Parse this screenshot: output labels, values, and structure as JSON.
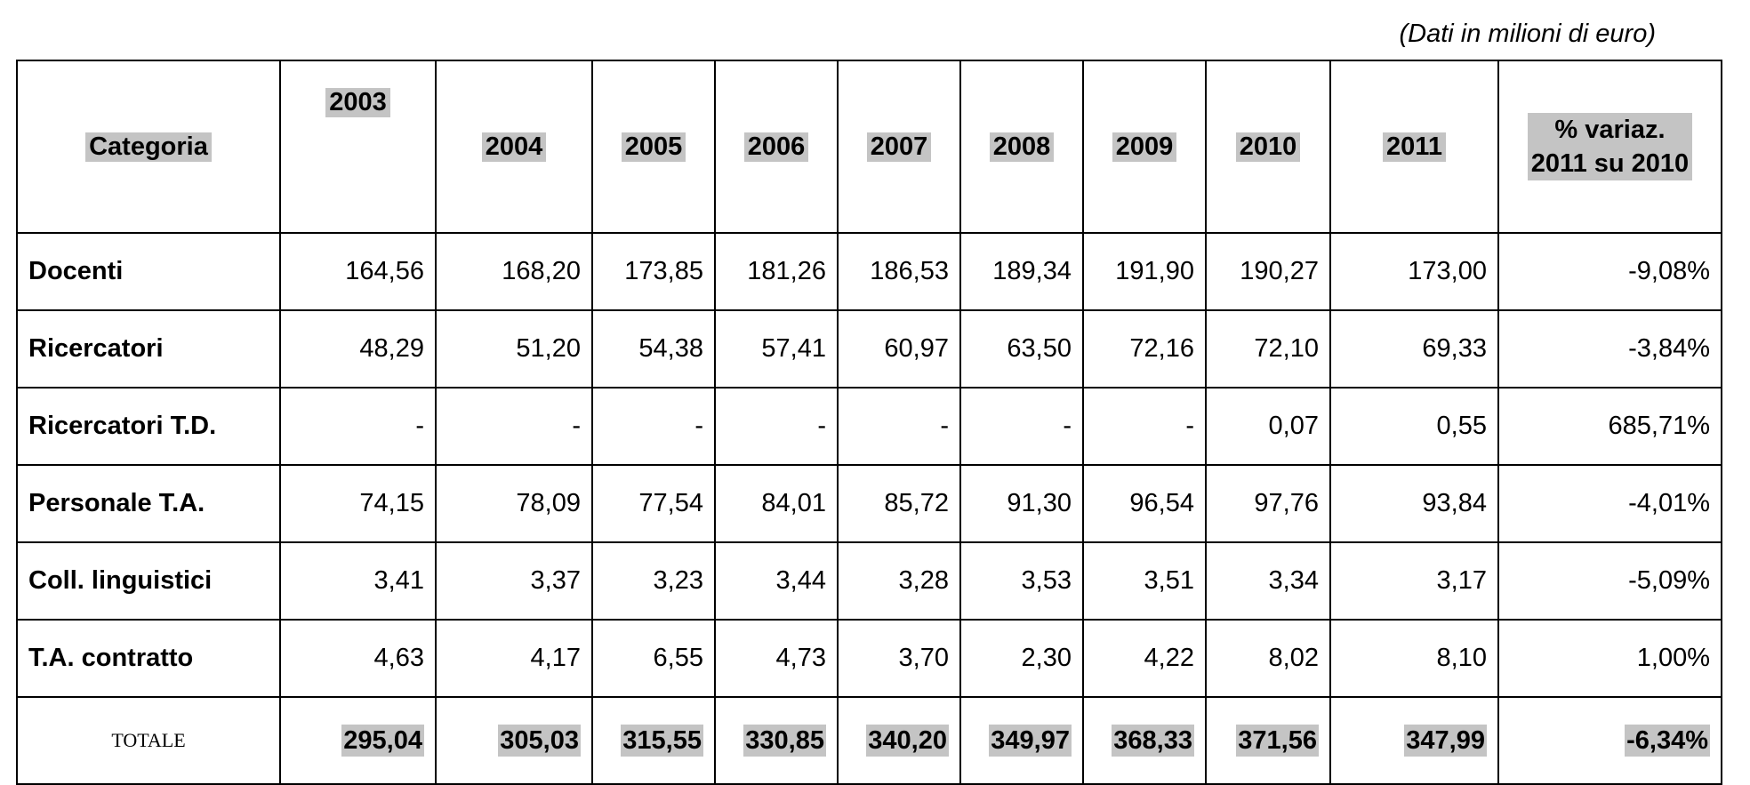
{
  "unit_note": "(Dati in milioni di euro)",
  "header": {
    "categoria": "Categoria",
    "years": [
      "2003",
      "2004",
      "2005",
      "2006",
      "2007",
      "2008",
      "2009",
      "2010",
      "2011"
    ],
    "pct_line1": "% variaz.",
    "pct_line2": "2011 su 2010"
  },
  "rows": [
    {
      "cat": "Docenti",
      "vals": [
        "164,56",
        "168,20",
        "173,85",
        "181,26",
        "186,53",
        "189,34",
        "191,90",
        "190,27",
        "173,00"
      ],
      "pct": "-9,08%"
    },
    {
      "cat": "Ricercatori",
      "vals": [
        "48,29",
        "51,20",
        "54,38",
        "57,41",
        "60,97",
        "63,50",
        "72,16",
        "72,10",
        "69,33"
      ],
      "pct": "-3,84%"
    },
    {
      "cat": "Ricercatori T.D.",
      "vals": [
        "-",
        "-",
        "-",
        "-",
        "-",
        "-",
        "-",
        "0,07",
        "0,55"
      ],
      "pct": "685,71%"
    },
    {
      "cat": "Personale T.A.",
      "vals": [
        "74,15",
        "78,09",
        "77,54",
        "84,01",
        "85,72",
        "91,30",
        "96,54",
        "97,76",
        "93,84"
      ],
      "pct": "-4,01%"
    },
    {
      "cat": "Coll. linguistici",
      "vals": [
        "3,41",
        "3,37",
        "3,23",
        "3,44",
        "3,28",
        "3,53",
        "3,51",
        "3,34",
        "3,17"
      ],
      "pct": "-5,09%"
    },
    {
      "cat": "T.A. contratto",
      "vals": [
        "4,63",
        "4,17",
        "6,55",
        "4,73",
        "3,70",
        "2,30",
        "4,22",
        "8,02",
        "8,10"
      ],
      "pct": "1,00%"
    }
  ],
  "total": {
    "cat": "TOTALE",
    "vals": [
      "295,04",
      "305,03",
      "315,55",
      "330,85",
      "340,20",
      "349,97",
      "368,33",
      "371,56",
      "347,99"
    ],
    "pct": "-6,34%"
  }
}
